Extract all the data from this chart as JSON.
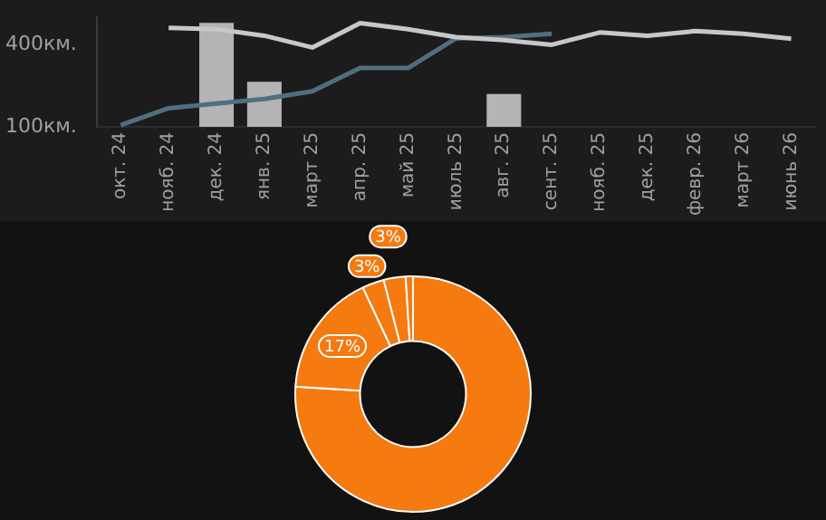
{
  "chart_data": [
    {
      "type": "bar",
      "categories": [
        "окт. 24",
        "нояб. 24",
        "дек. 24",
        "янв. 25",
        "март 25",
        "апр. 25",
        "май 25",
        "июль 25",
        "авг. 25",
        "сент. 25",
        "нояб. 25",
        "дек. 25",
        "февр. 26",
        "март 26",
        "июнь 26"
      ],
      "series": [
        {
          "type": "bar",
          "color": "#b4b4b4",
          "values": [
            null,
            null,
            480,
            265,
            null,
            null,
            null,
            null,
            220,
            null,
            null,
            null,
            null,
            null,
            null
          ]
        },
        {
          "type": "line",
          "color": "#c8c8c8",
          "values": [
            null,
            462,
            457,
            433,
            390,
            479,
            457,
            428,
            417,
            400,
            445,
            433,
            450,
            440,
            422
          ]
        },
        {
          "type": "line",
          "color": "#4f6f7e",
          "values": [
            106,
            168,
            185,
            202,
            230,
            315,
            315,
            423,
            428,
            440,
            null,
            null,
            null,
            null,
            null
          ]
        }
      ],
      "ylim": [
        100,
        500
      ],
      "yticks": [
        {
          "value": 100,
          "label": "100км."
        },
        {
          "value": 400,
          "label": "400км."
        }
      ],
      "grid": false,
      "legend": false,
      "marker": "none"
    },
    {
      "type": "donut",
      "categories": [
        null,
        null,
        null,
        null,
        null
      ],
      "values": [
        76,
        17,
        3,
        3,
        1
      ],
      "colors": [
        "#f57a10",
        "#f57a10",
        "#f57a10",
        "#f57a10",
        "#f57a10"
      ],
      "value_labels": [
        null,
        "17%",
        "3%",
        "3%",
        null
      ],
      "legend": false
    }
  ]
}
